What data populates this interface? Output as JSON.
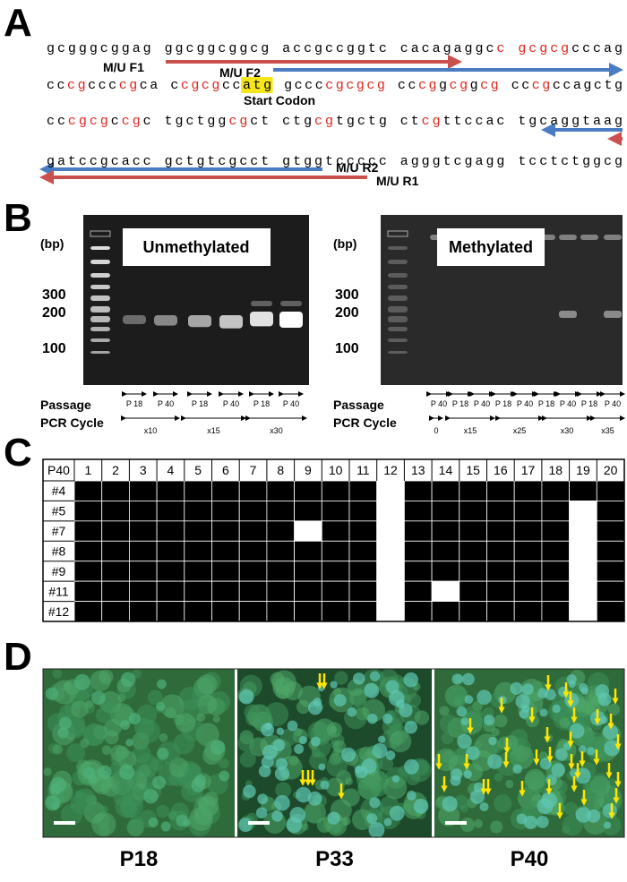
{
  "panel_a": {
    "letter": "A",
    "lines": [
      [
        {
          "text": "gcgggcggag ggcggcggcg accgccggtc cacagaggc"
        },
        {
          "text": "c",
          "cpg": true
        },
        {
          "text": " "
        },
        {
          "text": "gcgcg",
          "cpg": true
        },
        {
          "text": "cccag"
        }
      ],
      [
        {
          "text": "cc"
        },
        {
          "text": "cg",
          "cpg": true
        },
        {
          "text": "ccc"
        },
        {
          "text": "cg",
          "cpg": true
        },
        {
          "text": "ca c"
        },
        {
          "text": "cgcg",
          "cpg": true
        },
        {
          "text": "cc"
        },
        {
          "text": "atg",
          "highlight": true
        },
        {
          "text": " gccc"
        },
        {
          "text": "cgcgcg",
          "cpg": true
        },
        {
          "text": " cc"
        },
        {
          "text": "cg",
          "cpg": true
        },
        {
          "text": "g"
        },
        {
          "text": "cg",
          "cpg": true
        },
        {
          "text": "g"
        },
        {
          "text": "cg",
          "cpg": true
        },
        {
          "text": " cc"
        },
        {
          "text": "cg",
          "cpg": true
        },
        {
          "text": "ccagctg"
        }
      ],
      [
        {
          "text": "cc"
        },
        {
          "text": "cgcg",
          "cpg": true
        },
        {
          "text": "c"
        },
        {
          "text": "cg",
          "cpg": true
        },
        {
          "text": "c tgctgg"
        },
        {
          "text": "cg",
          "cpg": true
        },
        {
          "text": "ct ctg"
        },
        {
          "text": "cg",
          "cpg": true
        },
        {
          "text": "tgctg ct"
        },
        {
          "text": "cg",
          "cpg": true
        },
        {
          "text": "ttccac tgcaggtaag"
        }
      ],
      [
        {
          "text": "gatccgcacc gctgtcgcct gtggtccccc agggtcgagg tcctctggcg"
        }
      ]
    ],
    "primer_f1": "M/U F1",
    "primer_f2": "M/U F2",
    "primer_r2": "M/U R2",
    "primer_r1": "M/U R1",
    "start_codon": "Start Codon"
  },
  "panel_b": {
    "letter": "B",
    "bp_label": "(bp)",
    "sizes": [
      "300",
      "200",
      "100"
    ],
    "passage_label": "Passage",
    "pcr_label": "PCR Cycle",
    "gels": [
      {
        "title": "Unmethylated",
        "lanes": [
          "P 18",
          "P 40",
          "P 18",
          "P 40",
          "P 18",
          "P 40"
        ],
        "cycles": [
          "x10",
          "x15",
          "x30"
        ]
      },
      {
        "title": "Methylated",
        "lanes": [
          "P 40",
          "P 18",
          "P 40",
          "P 18",
          "P 40",
          "P 18",
          "P 40",
          "P 18",
          "P 40"
        ],
        "cycles": [
          "0",
          "x15",
          "x25",
          "x30",
          "x35"
        ]
      }
    ]
  },
  "panel_c": {
    "letter": "C",
    "corner": "P40",
    "columns": [
      "1",
      "2",
      "3",
      "4",
      "5",
      "6",
      "7",
      "8",
      "9",
      "10",
      "11",
      "12",
      "13",
      "14",
      "15",
      "16",
      "17",
      "18",
      "19",
      "20"
    ],
    "rows": [
      {
        "label": "#4",
        "methylated": [
          true,
          true,
          true,
          true,
          true,
          true,
          true,
          true,
          true,
          true,
          true,
          false,
          true,
          true,
          true,
          true,
          true,
          true,
          true,
          true
        ]
      },
      {
        "label": "#5",
        "methylated": [
          true,
          true,
          true,
          true,
          true,
          true,
          true,
          true,
          true,
          true,
          true,
          false,
          true,
          true,
          true,
          true,
          true,
          true,
          false,
          true
        ]
      },
      {
        "label": "#7",
        "methylated": [
          true,
          true,
          true,
          true,
          true,
          true,
          true,
          true,
          false,
          true,
          true,
          false,
          true,
          true,
          true,
          true,
          true,
          true,
          false,
          true
        ]
      },
      {
        "label": "#8",
        "methylated": [
          true,
          true,
          true,
          true,
          true,
          true,
          true,
          true,
          true,
          true,
          true,
          false,
          true,
          true,
          true,
          true,
          true,
          true,
          false,
          true
        ]
      },
      {
        "label": "#9",
        "methylated": [
          true,
          true,
          true,
          true,
          true,
          true,
          true,
          true,
          true,
          true,
          true,
          false,
          true,
          true,
          true,
          true,
          true,
          true,
          false,
          true
        ]
      },
      {
        "label": "#11",
        "methylated": [
          true,
          true,
          true,
          true,
          true,
          true,
          true,
          true,
          true,
          true,
          true,
          false,
          true,
          false,
          true,
          true,
          true,
          true,
          false,
          true
        ]
      },
      {
        "label": "#12",
        "methylated": [
          true,
          true,
          true,
          true,
          true,
          true,
          true,
          true,
          true,
          true,
          true,
          false,
          true,
          true,
          true,
          true,
          true,
          true,
          false,
          true
        ]
      }
    ]
  },
  "panel_d": {
    "letter": "D",
    "images": [
      "P18",
      "P33",
      "P40"
    ]
  }
}
